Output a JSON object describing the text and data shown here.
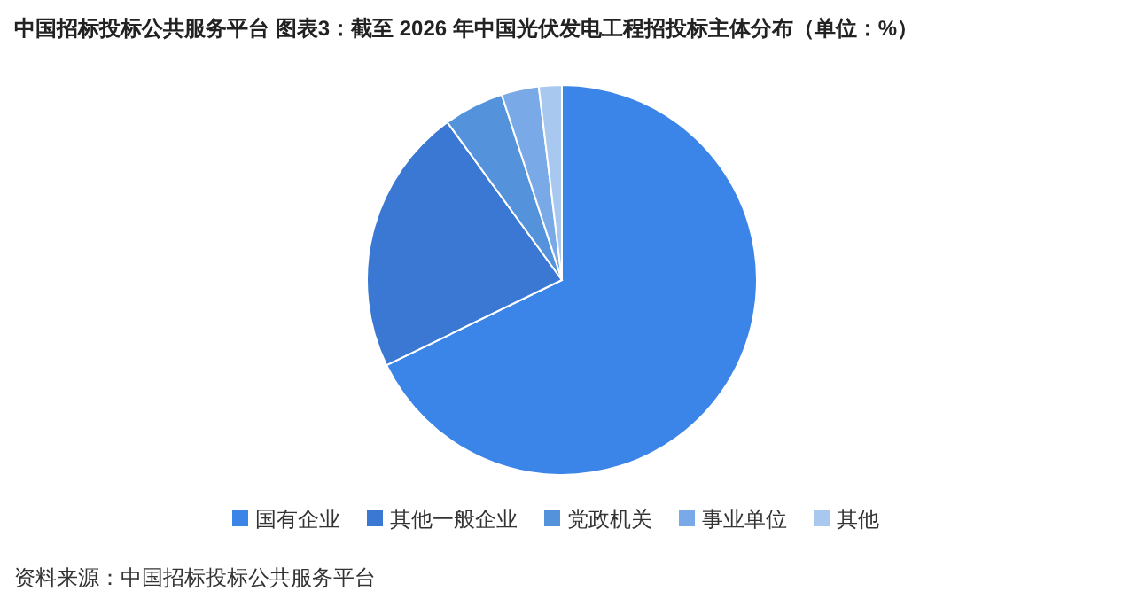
{
  "chart_data": {
    "type": "pie",
    "title": "中国招标投标公共服务平台  图表3：截至 2026 年中国光伏发电工程招投标主体分布（单位：%）",
    "categories": [
      "国有企业",
      "其他一般企业",
      "党政机关",
      "事业单位",
      "其他"
    ],
    "values": [
      67.8,
      22.2,
      5,
      3.1,
      1.9
    ],
    "colors": [
      "#3b84e8",
      "#3a78d4",
      "#5592dc",
      "#79a9e6",
      "#a9c8f0"
    ],
    "legend": "bottom",
    "annotations": [
      "资料来源：中国招标投标公共服务平台"
    ]
  }
}
